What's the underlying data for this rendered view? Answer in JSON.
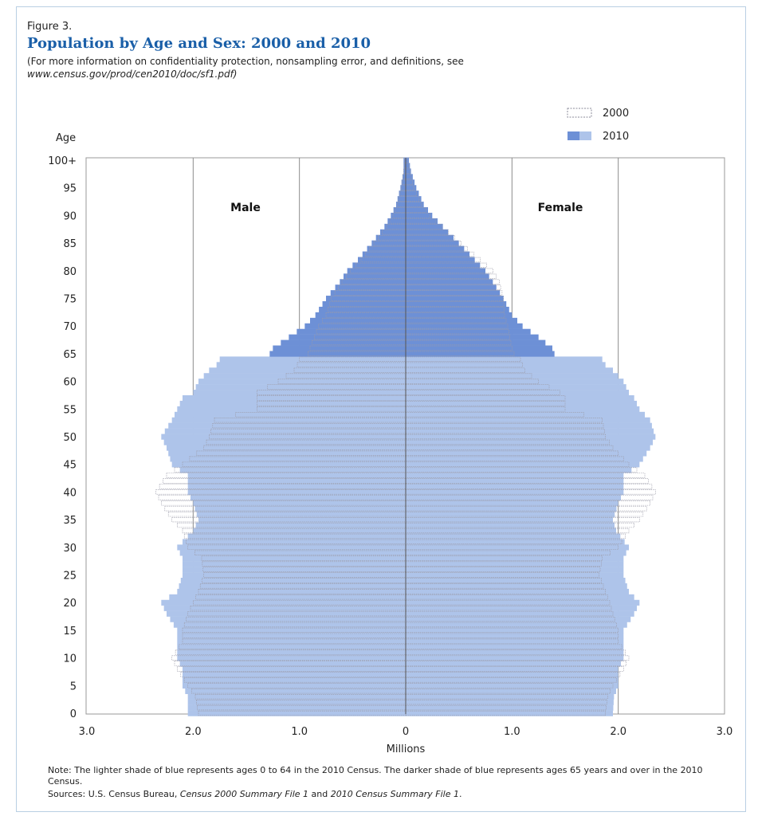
{
  "figure": {
    "label": "Figure 3.",
    "title": "Population by Age and Sex: 2000 and 2010",
    "subtitle_line1": "(For more information on confidentiality protection, nonsampling error, and definitions, see",
    "subtitle_line2": "www.census.gov/prod/cen2010/doc/sf1.pdf)",
    "footnote": "Note: The lighter shade of blue represents ages 0 to 64 in the 2010 Census. The darker shade of blue represents ages 65 years and over in the 2010 Census.",
    "sources_prefix": "Sources: U.S. Census Bureau, ",
    "sources_source1": "Census 2000 Summary File 1",
    "sources_and": " and ",
    "sources_source2": "2010 Census Summary File 1",
    "sources_suffix": "."
  },
  "chart_data": {
    "type": "bar",
    "orientation": "horizontal-pyramid",
    "ylabel": "Age",
    "xlabel": "Millions",
    "male_label": "Male",
    "female_label": "Female",
    "xlim": [
      -3.0,
      3.0
    ],
    "x_ticks": [
      "3.0",
      "2.0",
      "1.0",
      "0",
      "1.0",
      "2.0",
      "3.0"
    ],
    "x_tick_values": [
      -3,
      -2,
      -1,
      0,
      1,
      2,
      3
    ],
    "y_ticks": [
      "0",
      "5",
      "10",
      "15",
      "20",
      "25",
      "30",
      "35",
      "40",
      "45",
      "50",
      "55",
      "60",
      "65",
      "70",
      "75",
      "80",
      "85",
      "90",
      "95",
      "100+"
    ],
    "legend": [
      {
        "label": "2000",
        "style": "dotted-outline"
      },
      {
        "label": "2010",
        "style": "filled"
      }
    ],
    "legend_position": "top-right",
    "grid": true,
    "colors": {
      "light_2010": "#aec4ea",
      "dark_2010": "#6d90d6",
      "outline_2000": "#9a9aa8",
      "axis": "#666666"
    },
    "age_keypoints": [
      0,
      3,
      5,
      8,
      10,
      13,
      15,
      18,
      20,
      22,
      25,
      28,
      30,
      33,
      35,
      38,
      40,
      43,
      45,
      48,
      50,
      53,
      55,
      57,
      58,
      60,
      62,
      63,
      64,
      65,
      66,
      68,
      70,
      72,
      75,
      78,
      80,
      82,
      85,
      88,
      90,
      92,
      95,
      98,
      100
    ],
    "series": [
      {
        "name": "2010 Male",
        "values": [
          2.05,
          2.05,
          2.1,
          2.1,
          2.15,
          2.15,
          2.15,
          2.25,
          2.3,
          2.15,
          2.1,
          2.1,
          2.15,
          2.0,
          1.95,
          2.0,
          2.05,
          2.05,
          2.2,
          2.25,
          2.3,
          2.2,
          2.15,
          2.1,
          2.0,
          1.95,
          1.85,
          1.78,
          1.75,
          1.28,
          1.25,
          1.1,
          0.95,
          0.85,
          0.75,
          0.62,
          0.55,
          0.45,
          0.32,
          0.2,
          0.14,
          0.09,
          0.05,
          0.02,
          0.02
        ]
      },
      {
        "name": "2010 Female",
        "values": [
          1.95,
          1.96,
          2.0,
          2.0,
          2.05,
          2.05,
          2.05,
          2.15,
          2.2,
          2.1,
          2.05,
          2.05,
          2.1,
          1.98,
          1.95,
          2.0,
          2.05,
          2.05,
          2.2,
          2.3,
          2.35,
          2.3,
          2.2,
          2.15,
          2.1,
          2.05,
          1.95,
          1.88,
          1.85,
          1.4,
          1.38,
          1.25,
          1.1,
          1.0,
          0.92,
          0.82,
          0.75,
          0.65,
          0.5,
          0.35,
          0.25,
          0.17,
          0.1,
          0.05,
          0.03
        ]
      },
      {
        "name": "2000 Male",
        "values": [
          1.95,
          1.98,
          2.05,
          2.15,
          2.2,
          2.1,
          2.1,
          2.05,
          2.0,
          1.95,
          1.9,
          1.92,
          2.05,
          2.1,
          2.2,
          2.3,
          2.35,
          2.25,
          2.1,
          1.9,
          1.85,
          1.8,
          1.4,
          1.4,
          1.4,
          1.2,
          1.05,
          1.02,
          1.0,
          0.92,
          0.9,
          0.86,
          0.82,
          0.75,
          0.7,
          0.6,
          0.52,
          0.42,
          0.3,
          0.18,
          0.12,
          0.08,
          0.04,
          0.02,
          0.01
        ]
      },
      {
        "name": "2000 Female",
        "values": [
          1.88,
          1.9,
          1.95,
          2.05,
          2.1,
          2.0,
          2.0,
          1.95,
          1.92,
          1.88,
          1.82,
          1.85,
          2.0,
          2.1,
          2.2,
          2.3,
          2.35,
          2.25,
          2.1,
          1.95,
          1.88,
          1.85,
          1.5,
          1.5,
          1.45,
          1.25,
          1.12,
          1.1,
          1.08,
          1.02,
          1.0,
          0.98,
          0.96,
          0.93,
          0.92,
          0.88,
          0.82,
          0.7,
          0.52,
          0.34,
          0.23,
          0.15,
          0.08,
          0.04,
          0.02
        ]
      }
    ],
    "notes": "2010 bars ages 65+ shown in darker shade"
  }
}
